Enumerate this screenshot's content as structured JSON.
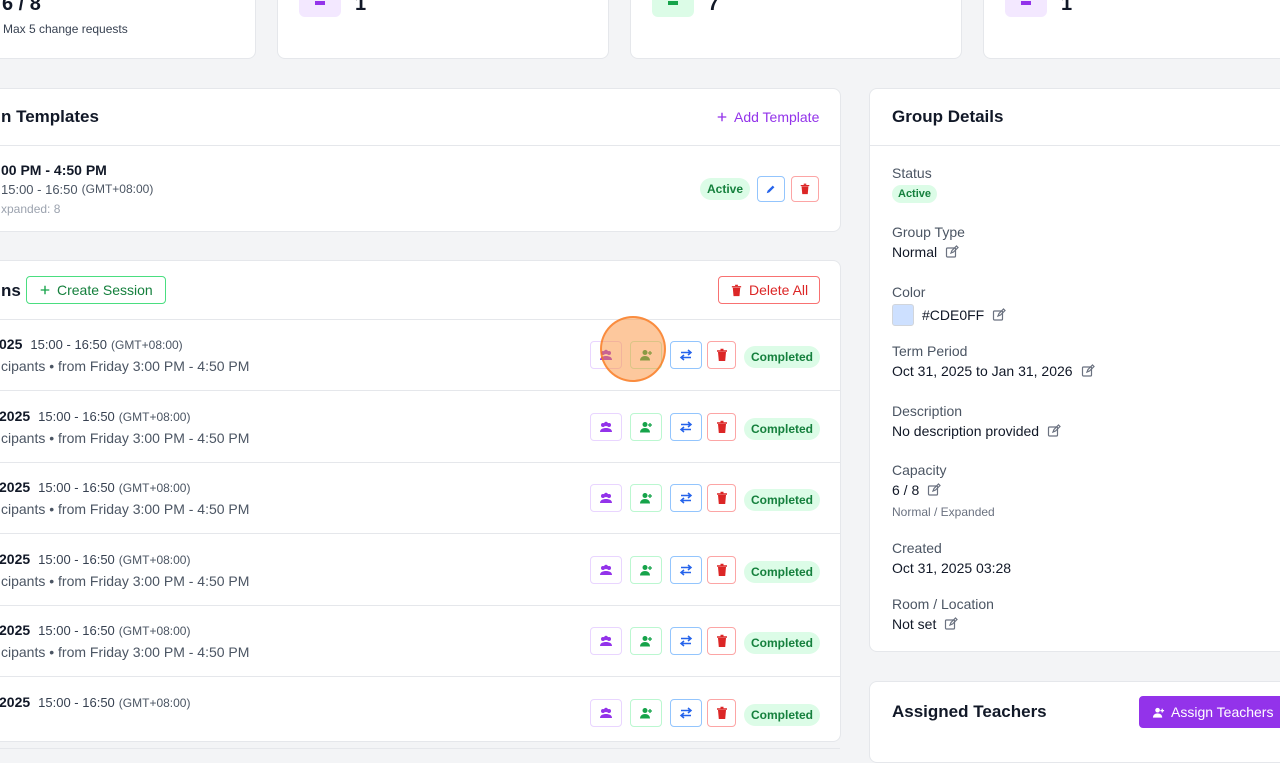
{
  "stats": [
    {
      "value": "6 / 8",
      "note": "Max 5 change requests"
    },
    {
      "value": "1"
    },
    {
      "value": "7"
    },
    {
      "value": "1"
    }
  ],
  "templates": {
    "title": "n Templates",
    "add": "Add Template",
    "item": {
      "time": "00 PM - 4:50 PM",
      "range": "15:00 - 16:50",
      "tz": "(GMT+08:00)",
      "expanded": "xpanded: 8",
      "status": "Active"
    }
  },
  "sessions": {
    "title": "ns",
    "create": "Create Session",
    "delete_all": "Delete All",
    "rows": [
      {
        "date": "025",
        "time": "15:00 - 16:50",
        "tz": "(GMT+08:00)",
        "detail": "cipants • from Friday 3:00 PM - 4:50 PM",
        "status": "Completed"
      },
      {
        "date": "2025",
        "time": "15:00 - 16:50",
        "tz": "(GMT+08:00)",
        "detail": "cipants • from Friday 3:00 PM - 4:50 PM",
        "status": "Completed"
      },
      {
        "date": "2025",
        "time": "15:00 - 16:50",
        "tz": "(GMT+08:00)",
        "detail": "cipants • from Friday 3:00 PM - 4:50 PM",
        "status": "Completed"
      },
      {
        "date": "2025",
        "time": "15:00 - 16:50",
        "tz": "(GMT+08:00)",
        "detail": "cipants • from Friday 3:00 PM - 4:50 PM",
        "status": "Completed"
      },
      {
        "date": "2025",
        "time": "15:00 - 16:50",
        "tz": "(GMT+08:00)",
        "detail": "cipants • from Friday 3:00 PM - 4:50 PM",
        "status": "Completed"
      },
      {
        "date": "2025",
        "time": "15:00 - 16:50",
        "tz": "(GMT+08:00)",
        "status": "Completed"
      }
    ]
  },
  "details": {
    "title": "Group Details",
    "fields": [
      {
        "label": "Status",
        "badge": "Active"
      },
      {
        "label": "Group Type",
        "value": "Normal",
        "editable": true
      },
      {
        "label": "Color",
        "value": "#CDE0FF",
        "swatch": true,
        "editable": true
      },
      {
        "label": "Term Period",
        "value": "Oct 31, 2025 to Jan 31, 2026",
        "editable": true
      },
      {
        "label": "Description",
        "value": "No description provided",
        "editable": true
      },
      {
        "label": "Capacity",
        "value": "6 / 8",
        "note": "Normal / Expanded",
        "editable": true
      },
      {
        "label": "Created",
        "value": "Oct 31, 2025 03:28"
      },
      {
        "label": "Room / Location",
        "value": "Not set",
        "editable": true
      }
    ]
  },
  "teachers": {
    "title": "Assigned Teachers",
    "assign": "Assign Teachers"
  }
}
